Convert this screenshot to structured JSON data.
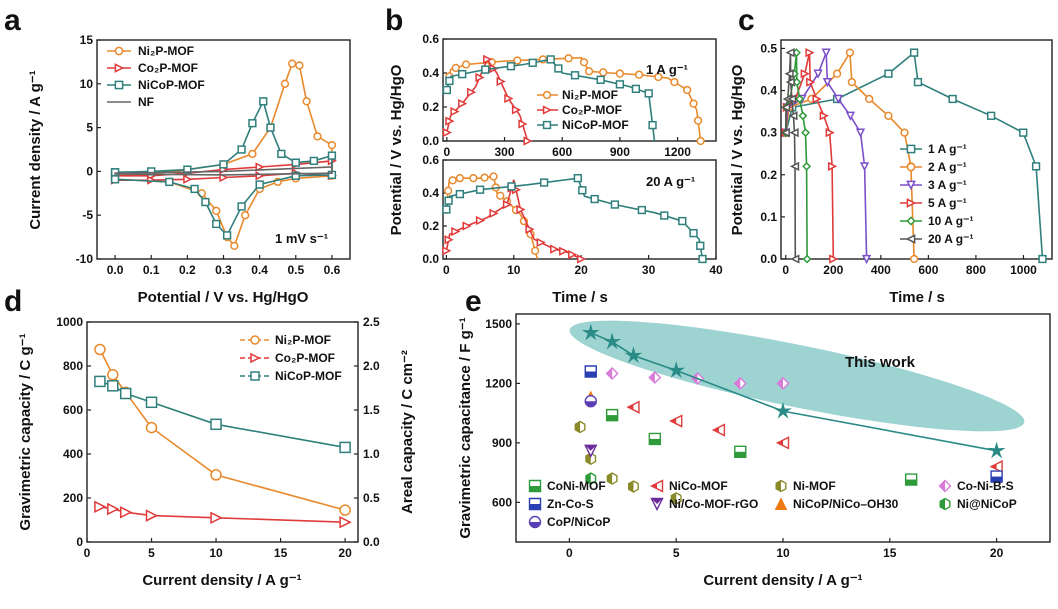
{
  "colors": {
    "ni2p": "#e8892c",
    "co2p": "#e03a3a",
    "nicop": "#2f7f7c",
    "nf": "#666666",
    "ellipse": "#7cc6c3",
    "thiswork": "#2a8a86"
  },
  "chart_data": [
    {
      "id": "a",
      "letter": "a",
      "type": "line",
      "xlabel": "Potential / V vs. Hg/HgO",
      "ylabel": "Current density / A g⁻¹",
      "xlim": [
        -0.05,
        0.65
      ],
      "ylim": [
        -10,
        15
      ],
      "xticks": [
        "0.0",
        "0.1",
        "0.2",
        "0.3",
        "0.4",
        "0.5",
        "0.6"
      ],
      "yticks": [
        "-10",
        "-5",
        "0",
        "5",
        "10",
        "15"
      ],
      "annotation": "1 mV s⁻¹",
      "legend": [
        "Ni₂P-MOF",
        "Co₂P-MOF",
        "NiCoP-MOF",
        "NF"
      ],
      "series": [
        {
          "name": "Ni₂P-MOF",
          "color_key": "ni2p",
          "marker": "circle",
          "closed": true,
          "points": [
            [
              0,
              -0.5
            ],
            [
              0.1,
              -0.3
            ],
            [
              0.2,
              0.2
            ],
            [
              0.3,
              0.8
            ],
            [
              0.38,
              2
            ],
            [
              0.43,
              5
            ],
            [
              0.47,
              10
            ],
            [
              0.49,
              12.3
            ],
            [
              0.51,
              12.1
            ],
            [
              0.53,
              8
            ],
            [
              0.56,
              4
            ],
            [
              0.6,
              3
            ],
            [
              0.6,
              -0.5
            ],
            [
              0.5,
              -0.8
            ],
            [
              0.45,
              -1.2
            ],
            [
              0.4,
              -2
            ],
            [
              0.36,
              -5
            ],
            [
              0.33,
              -8.5
            ],
            [
              0.31,
              -7.5
            ],
            [
              0.28,
              -4.5
            ],
            [
              0.24,
              -2.5
            ],
            [
              0.15,
              -1.2
            ],
            [
              0,
              -0.9
            ]
          ]
        },
        {
          "name": "Co₂P-MOF",
          "color_key": "co2p",
          "marker": "tri",
          "closed": true,
          "points": [
            [
              0,
              -0.5
            ],
            [
              0.1,
              -0.5
            ],
            [
              0.2,
              -0.2
            ],
            [
              0.3,
              0.2
            ],
            [
              0.4,
              0.5
            ],
            [
              0.5,
              0.8
            ],
            [
              0.6,
              1.2
            ],
            [
              0.6,
              -0.5
            ],
            [
              0.5,
              -0.2
            ],
            [
              0.4,
              -0.5
            ],
            [
              0.3,
              -0.7
            ],
            [
              0.2,
              -0.9
            ],
            [
              0.1,
              -1.0
            ],
            [
              0,
              -1.0
            ]
          ]
        },
        {
          "name": "NiCoP-MOF",
          "color_key": "nicop",
          "marker": "square",
          "closed": true,
          "points": [
            [
              0,
              -0.1
            ],
            [
              0.1,
              0
            ],
            [
              0.2,
              0.2
            ],
            [
              0.3,
              0.8
            ],
            [
              0.35,
              2.5
            ],
            [
              0.38,
              5.5
            ],
            [
              0.41,
              8
            ],
            [
              0.43,
              5
            ],
            [
              0.46,
              2
            ],
            [
              0.5,
              1
            ],
            [
              0.55,
              1.2
            ],
            [
              0.6,
              1.8
            ],
            [
              0.6,
              -0.4
            ],
            [
              0.5,
              -0.5
            ],
            [
              0.4,
              -1.5
            ],
            [
              0.35,
              -4
            ],
            [
              0.31,
              -7.3
            ],
            [
              0.28,
              -6
            ],
            [
              0.25,
              -3.5
            ],
            [
              0.22,
              -2
            ],
            [
              0.15,
              -1.2
            ],
            [
              0,
              -0.9
            ]
          ]
        },
        {
          "name": "NF",
          "color_key": "nf",
          "marker": "none",
          "closed": true,
          "points": [
            [
              0,
              -0.2
            ],
            [
              0.3,
              0
            ],
            [
              0.6,
              0.5
            ],
            [
              0.6,
              -0.2
            ],
            [
              0.3,
              -0.4
            ],
            [
              0,
              -0.3
            ]
          ]
        }
      ]
    },
    {
      "id": "b1",
      "letter": "b",
      "type": "line",
      "ylabel": "Potential / V vs. Hg/HgO",
      "xlim": [
        -20,
        1400
      ],
      "ylim": [
        0,
        0.6
      ],
      "xticks": [
        "0",
        "300",
        "600",
        "900",
        "1200"
      ],
      "yticks": [
        "0.0",
        "0.2",
        "0.4",
        "0.6"
      ],
      "annotation": "1 A g⁻¹",
      "legend": [
        "Ni₂P-MOF",
        "Co₂P-MOF",
        "NiCoP-MOF"
      ],
      "series": [
        {
          "name": "Ni₂P-MOF",
          "color_key": "ni2p",
          "marker": "circle",
          "points": [
            [
              0,
              0.3
            ],
            [
              20,
              0.42
            ],
            [
              100,
              0.45
            ],
            [
              300,
              0.47
            ],
            [
              500,
              0.48
            ],
            [
              700,
              0.49
            ],
            [
              740,
              0.41
            ],
            [
              850,
              0.4
            ],
            [
              1000,
              0.39
            ],
            [
              1150,
              0.37
            ],
            [
              1250,
              0.3
            ],
            [
              1300,
              0.18
            ],
            [
              1320,
              0
            ]
          ]
        },
        {
          "name": "Co₂P-MOF",
          "color_key": "co2p",
          "marker": "tri",
          "points": [
            [
              0,
              0.05
            ],
            [
              20,
              0.15
            ],
            [
              80,
              0.22
            ],
            [
              150,
              0.32
            ],
            [
              210,
              0.48
            ],
            [
              260,
              0.4
            ],
            [
              320,
              0.25
            ],
            [
              380,
              0.15
            ],
            [
              420,
              0
            ]
          ]
        },
        {
          "name": "NiCoP-MOF",
          "color_key": "nicop",
          "marker": "square",
          "points": [
            [
              0,
              0.3
            ],
            [
              20,
              0.38
            ],
            [
              200,
              0.42
            ],
            [
              400,
              0.45
            ],
            [
              540,
              0.48
            ],
            [
              600,
              0.4
            ],
            [
              800,
              0.36
            ],
            [
              950,
              0.32
            ],
            [
              1050,
              0.28
            ],
            [
              1080,
              0
            ]
          ]
        }
      ]
    },
    {
      "id": "b2",
      "letter": "",
      "type": "line",
      "xlabel": "Time / s",
      "xlim": [
        -0.5,
        40
      ],
      "ylim": [
        0,
        0.6
      ],
      "xticks": [
        "0",
        "10",
        "20",
        "30",
        "40"
      ],
      "yticks": [
        "0.0",
        "0.2",
        "0.4",
        "0.6"
      ],
      "annotation": "20 A g⁻¹",
      "series": [
        {
          "name": "Ni₂P-MOF",
          "color_key": "ni2p",
          "marker": "circle",
          "points": [
            [
              0,
              0.3
            ],
            [
              0.4,
              0.47
            ],
            [
              2,
              0.49
            ],
            [
              5,
              0.49
            ],
            [
              7,
              0.5
            ],
            [
              7.5,
              0.4
            ],
            [
              9,
              0.35
            ],
            [
              11,
              0.27
            ],
            [
              12.5,
              0.15
            ],
            [
              13.5,
              0
            ]
          ]
        },
        {
          "name": "Co₂P-MOF",
          "color_key": "co2p",
          "marker": "tri",
          "points": [
            [
              0,
              0.05
            ],
            [
              0.5,
              0.15
            ],
            [
              3,
              0.2
            ],
            [
              6,
              0.25
            ],
            [
              9,
              0.33
            ],
            [
              10,
              0.48
            ],
            [
              11,
              0.3
            ],
            [
              13,
              0.12
            ],
            [
              16,
              0.06
            ],
            [
              18,
              0.04
            ],
            [
              20,
              0
            ]
          ]
        },
        {
          "name": "NiCoP-MOF",
          "color_key": "nicop",
          "marker": "square",
          "points": [
            [
              0,
              0.3
            ],
            [
              0.5,
              0.38
            ],
            [
              5,
              0.42
            ],
            [
              12,
              0.45
            ],
            [
              19.5,
              0.49
            ],
            [
              20.5,
              0.38
            ],
            [
              25,
              0.33
            ],
            [
              31,
              0.28
            ],
            [
              35,
              0.23
            ],
            [
              37.5,
              0.12
            ],
            [
              38,
              0
            ]
          ]
        }
      ]
    },
    {
      "id": "c",
      "letter": "c",
      "type": "line",
      "ylabel": "Potential / V vs. Hg/HgO",
      "xlabel": "Time / s",
      "xlim": [
        -20,
        1120
      ],
      "ylim": [
        0,
        0.52
      ],
      "xticks": [
        "0",
        "200",
        "400",
        "600",
        "800",
        "1000"
      ],
      "yticks": [
        "0.0",
        "0.1",
        "0.2",
        "0.3",
        "0.4",
        "0.5"
      ],
      "legend": [
        "1 A g⁻¹",
        "2 A g⁻¹",
        "3 A g⁻¹",
        "5 A g⁻¹",
        "10 A g⁻¹",
        "20 A g⁻¹"
      ],
      "series": [
        {
          "name": "1 A g⁻¹",
          "color": "#2f7f7c",
          "marker": "square",
          "charge_end": 540,
          "discharge_end": 1080
        },
        {
          "name": "2 A g⁻¹",
          "color": "#e8892c",
          "marker": "circle",
          "charge_end": 270,
          "discharge_end": 540
        },
        {
          "name": "3 A g⁻¹",
          "color": "#7b4fc9",
          "marker": "tridown",
          "charge_end": 170,
          "discharge_end": 340
        },
        {
          "name": "5 A g⁻¹",
          "color": "#e03a3a",
          "marker": "tri",
          "charge_end": 100,
          "discharge_end": 200
        },
        {
          "name": "10 A g⁻¹",
          "color": "#2f9a3a",
          "marker": "diamond",
          "charge_end": 45,
          "discharge_end": 90
        },
        {
          "name": "20 A g⁻¹",
          "color": "#555555",
          "marker": "trileft",
          "charge_end": 20,
          "discharge_end": 40
        }
      ]
    },
    {
      "id": "d",
      "letter": "d",
      "type": "line",
      "xlabel": "Current density / A g⁻¹",
      "ylabel": "Gravimetric capacity / C g⁻¹",
      "ylabel2": "Areal capacity / C cm⁻²",
      "xlim": [
        0,
        21
      ],
      "ylim": [
        0,
        1000
      ],
      "ylim2": [
        0,
        2.5
      ],
      "xticks": [
        "0",
        "5",
        "10",
        "15",
        "20"
      ],
      "yticks": [
        "0",
        "200",
        "400",
        "600",
        "800",
        "1000"
      ],
      "yticks2": [
        "0.0",
        "0.5",
        "1.0",
        "1.5",
        "2.0",
        "2.5"
      ],
      "legend": [
        "Ni₂P-MOF",
        "Co₂P-MOF",
        "NiCoP-MOF"
      ],
      "series": [
        {
          "name": "Ni₂P-MOF",
          "color_key": "ni2p",
          "marker": "circle",
          "x": [
            1,
            2,
            3,
            5,
            10,
            20
          ],
          "y": [
            875,
            760,
            680,
            520,
            305,
            145
          ]
        },
        {
          "name": "Co₂P-MOF",
          "color_key": "co2p",
          "marker": "tri",
          "x": [
            1,
            2,
            3,
            5,
            10,
            20
          ],
          "y": [
            160,
            150,
            135,
            120,
            110,
            90
          ]
        },
        {
          "name": "NiCoP-MOF",
          "color_key": "nicop",
          "marker": "square",
          "x": [
            1,
            2,
            3,
            5,
            10,
            20
          ],
          "y": [
            730,
            710,
            675,
            635,
            535,
            430
          ]
        }
      ]
    },
    {
      "id": "e",
      "letter": "e",
      "type": "scatter",
      "xlabel": "Current density / A g⁻¹",
      "ylabel": "Gravimetric capacitance / F g⁻¹",
      "xlim": [
        -2.5,
        22.5
      ],
      "ylim": [
        400,
        1550
      ],
      "xticks": [
        "0",
        "5",
        "10",
        "15",
        "20"
      ],
      "yticks": [
        "600",
        "900",
        "1200",
        "1500"
      ],
      "annotation": "This work",
      "this_work": {
        "x": [
          1,
          2,
          3,
          5,
          10,
          20
        ],
        "y": [
          1455,
          1410,
          1340,
          1265,
          1060,
          860
        ]
      },
      "series": [
        {
          "name": "CoNi-MOF",
          "color": "#2f9a3a",
          "marker": "halfsq",
          "x": [
            2,
            4,
            8,
            16
          ],
          "y": [
            1040,
            920,
            855,
            715
          ]
        },
        {
          "name": "NiCo-MOF",
          "color": "#e03a3a",
          "marker": "halftri",
          "x": [
            3,
            5,
            7,
            10,
            20
          ],
          "y": [
            1080,
            1010,
            965,
            900,
            780
          ]
        },
        {
          "name": "Ni-MOF",
          "color": "#8a8a2a",
          "marker": "halfhex",
          "x": [
            0.5,
            1,
            2,
            3,
            5
          ],
          "y": [
            980,
            820,
            720,
            680,
            620
          ]
        },
        {
          "name": "Co-Ni-B-S",
          "color": "#d97ad9",
          "marker": "halfdia",
          "x": [
            2,
            4,
            6,
            8,
            10
          ],
          "y": [
            1250,
            1230,
            1225,
            1200,
            1200
          ]
        },
        {
          "name": "Zn-Co-S",
          "color": "#2b3fb5",
          "marker": "halfsq",
          "x": [
            1,
            20
          ],
          "y": [
            1260,
            730
          ]
        },
        {
          "name": "Ni/Co-MOF-rGO",
          "color": "#6a2a9a",
          "marker": "halftridown",
          "x": [
            1
          ],
          "y": [
            860
          ]
        },
        {
          "name": "NiCoP/NiCo–OH30",
          "color": "#f07a10",
          "marker": "tri",
          "x": [
            1
          ],
          "y": [
            1130
          ]
        },
        {
          "name": "Ni@NiCoP",
          "color": "#2f9a3a",
          "marker": "halfhex",
          "x": [
            1
          ],
          "y": [
            720
          ]
        },
        {
          "name": "CoP/NiCoP",
          "color": "#5a3fb5",
          "marker": "halfcirc",
          "x": [
            1
          ],
          "y": [
            1110
          ]
        }
      ]
    }
  ]
}
